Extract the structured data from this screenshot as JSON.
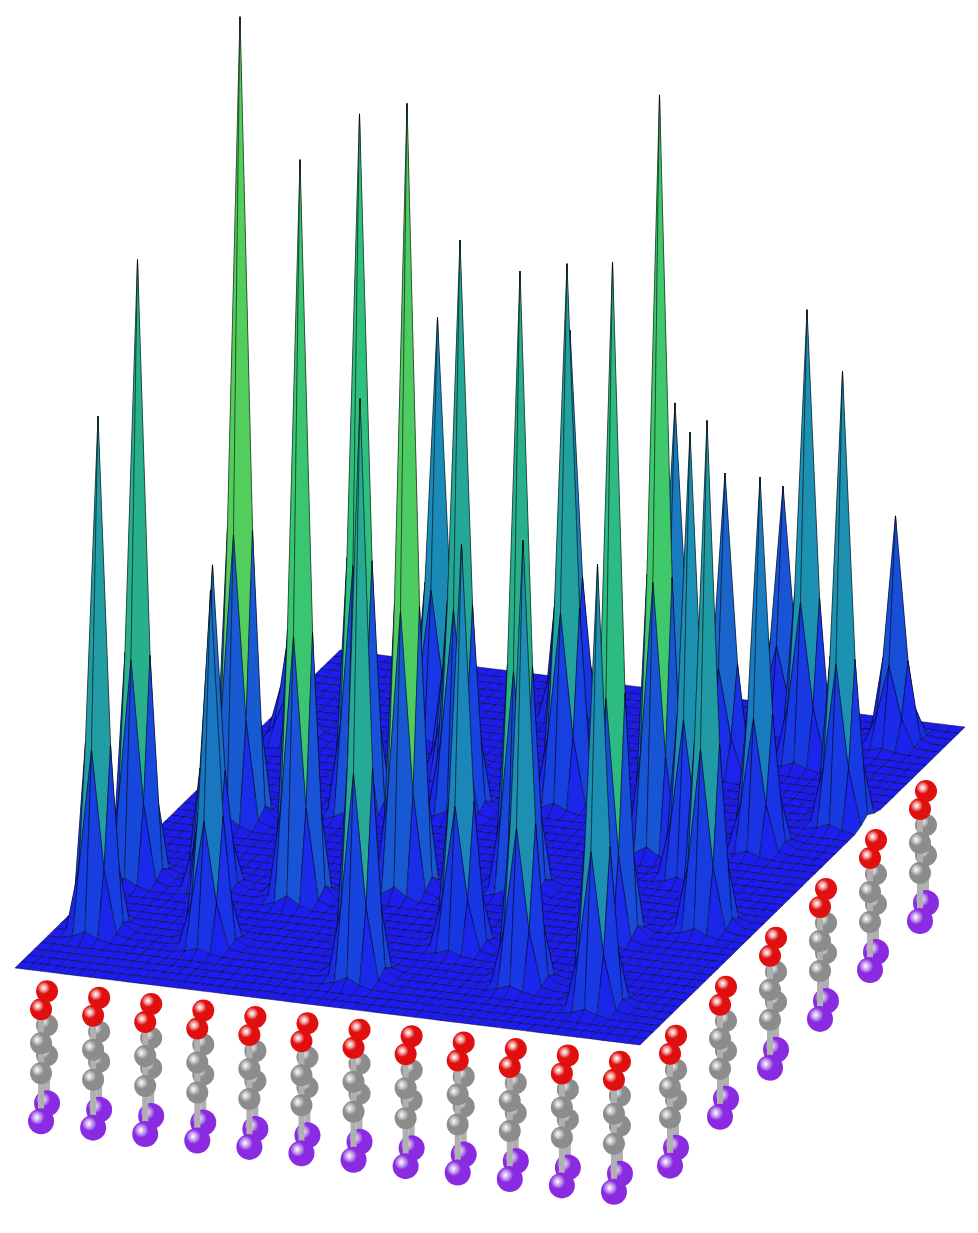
{
  "chart_data": {
    "type": "surface",
    "tick_labels": false,
    "zlim": [
      0,
      1
    ],
    "peaks": [
      {
        "u": 0.06,
        "v": 0.14,
        "z": 0.64
      },
      {
        "u": 0.04,
        "v": 0.3,
        "z": 0.77
      },
      {
        "u": 0.1,
        "v": 0.5,
        "z": 1.0
      },
      {
        "u": 0.3,
        "v": 0.3,
        "z": 0.92
      },
      {
        "u": 0.26,
        "v": 0.56,
        "z": 0.87
      },
      {
        "u": 0.44,
        "v": 0.36,
        "z": 0.98
      },
      {
        "u": 0.4,
        "v": 0.6,
        "z": 0.71
      },
      {
        "u": 0.6,
        "v": 0.4,
        "z": 0.77
      },
      {
        "u": 0.54,
        "v": 0.66,
        "z": 0.67
      },
      {
        "u": 0.8,
        "v": 0.3,
        "z": 0.84
      },
      {
        "u": 0.74,
        "v": 0.56,
        "z": 0.94
      },
      {
        "u": 0.92,
        "v": 0.36,
        "z": 0.63
      },
      {
        "u": 0.72,
        "v": 0.8,
        "z": 0.37
      },
      {
        "u": 0.88,
        "v": 0.6,
        "z": 0.46
      },
      {
        "u": 0.82,
        "v": 0.86,
        "z": 0.56
      },
      {
        "u": 0.96,
        "v": 0.7,
        "z": 0.56
      },
      {
        "u": 0.92,
        "v": 0.94,
        "z": 0.28
      },
      {
        "u": 0.24,
        "v": 0.14,
        "z": 0.44
      },
      {
        "u": 0.26,
        "v": 0.8,
        "z": 0.52
      },
      {
        "u": 0.74,
        "v": 0.14,
        "z": 0.55
      },
      {
        "u": 0.88,
        "v": 0.1,
        "z": 0.55
      },
      {
        "u": 0.5,
        "v": 0.1,
        "z": 0.72
      },
      {
        "u": 0.42,
        "v": 0.9,
        "z": 0.48
      },
      {
        "u": 0.82,
        "v": 0.5,
        "z": 0.55
      },
      {
        "u": 0.74,
        "v": 0.94,
        "z": 0.3
      },
      {
        "u": 0.06,
        "v": 0.74,
        "z": 0.17
      },
      {
        "u": 0.16,
        "v": 0.3,
        "z": 0.4
      },
      {
        "u": 0.6,
        "v": 0.22,
        "z": 0.5
      },
      {
        "u": 0.34,
        "v": 0.7,
        "z": 0.35
      },
      {
        "u": 0.64,
        "v": 0.8,
        "z": 0.45
      }
    ]
  }
}
